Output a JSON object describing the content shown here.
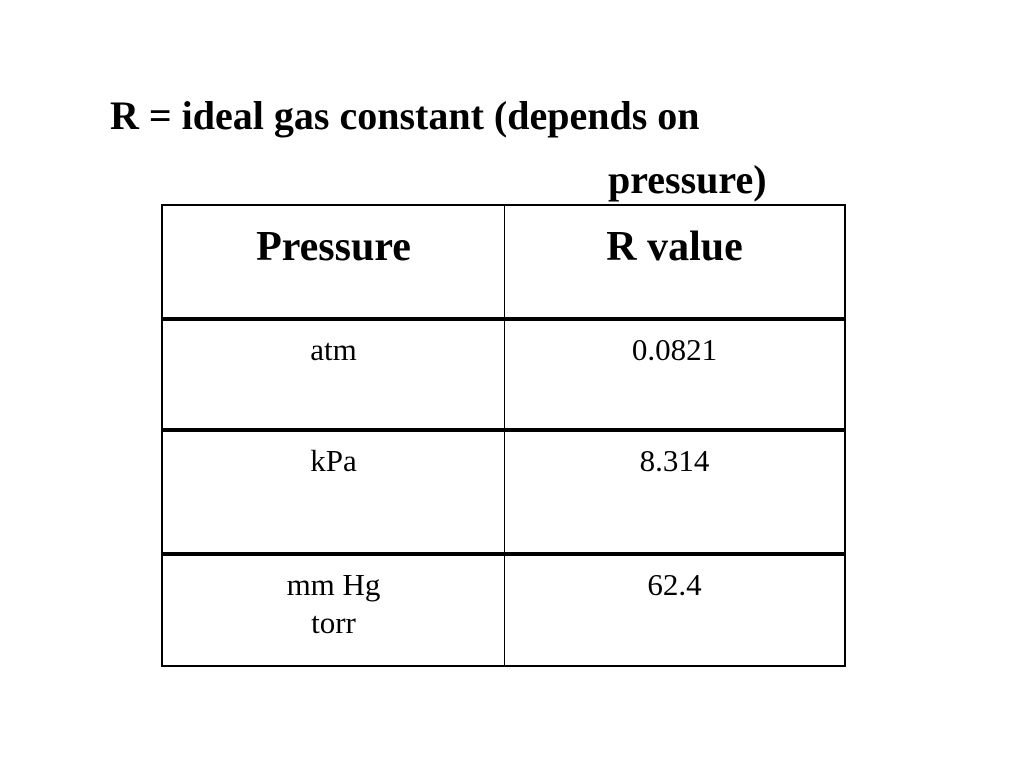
{
  "title_lines": [
    "R = ideal gas constant (depends on",
    "pressure)"
  ],
  "table": {
    "header": [
      "Pressure",
      "R value"
    ],
    "rows": [
      [
        "atm",
        "0.0821"
      ],
      [
        "kPa",
        "8.314"
      ],
      [
        "mm Hg\ntorr",
        "62.4"
      ]
    ]
  }
}
